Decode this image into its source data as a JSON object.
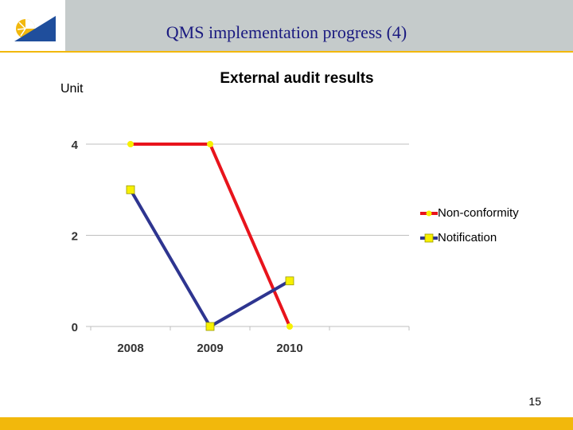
{
  "slide": {
    "title": "QMS implementation progress (4)",
    "page_number": "15",
    "unit_label": "Unit"
  },
  "colors": {
    "header_bg": "#c5cbcb",
    "accent": "#f2b80c",
    "title": "#1a1a80",
    "non_conformity": "#e8141c",
    "notification": "#2e3590",
    "marker_fill": "#f7f000"
  },
  "chart_data": {
    "type": "line",
    "title": "External audit results",
    "xlabel": "",
    "ylabel": "Unit",
    "categories": [
      "2008",
      "2009",
      "2010"
    ],
    "series": [
      {
        "name": "Non-conformity",
        "values": [
          4,
          4,
          0
        ],
        "marker": "circle"
      },
      {
        "name": "Notification",
        "values": [
          3,
          0,
          1
        ],
        "marker": "square"
      }
    ],
    "ylim": [
      0,
      4
    ],
    "yticks": [
      0,
      2,
      4
    ],
    "grid": true,
    "legend": "right"
  }
}
